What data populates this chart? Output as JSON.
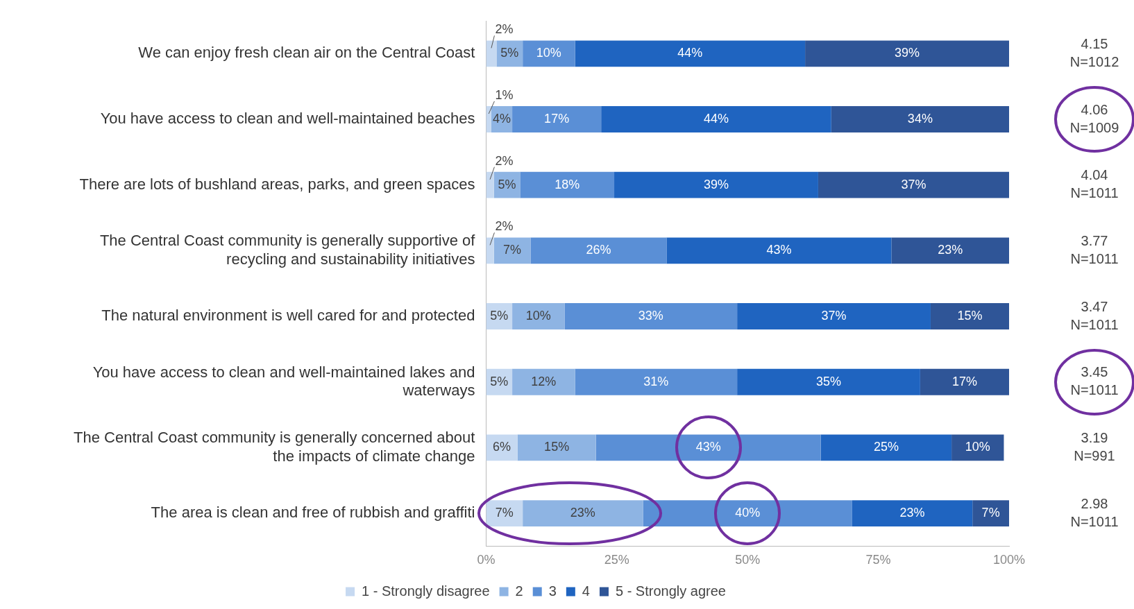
{
  "chart_data": {
    "type": "bar",
    "orientation": "horizontal",
    "stacked": true,
    "categories": [
      "We can enjoy fresh clean air on the Central Coast",
      "You have access to clean and well-maintained beaches",
      "There are lots of bushland areas, parks, and green spaces",
      "The Central Coast community is generally supportive of recycling and sustainability initiatives",
      "The natural environment is well cared for and protected",
      "You have access to clean and well-maintained lakes and waterways",
      "The Central Coast community is generally concerned about the impacts of climate change",
      "The area is clean and free of rubbish and graffiti"
    ],
    "series": [
      {
        "name": "1 - Strongly disagree",
        "color": "#c6d9f1",
        "values": [
          2,
          1,
          1.5,
          1.5,
          5,
          5,
          6,
          7
        ],
        "value_labels": [
          "2%",
          "1%",
          "2%",
          "2%",
          "5%",
          "5%",
          "6%",
          "7%"
        ]
      },
      {
        "name": "2",
        "color": "#8eb4e3",
        "values": [
          5,
          4,
          5,
          7,
          10,
          12,
          15,
          23
        ],
        "value_labels": [
          "5%",
          "4%",
          "5%",
          "7%",
          "10%",
          "12%",
          "15%",
          "23%"
        ]
      },
      {
        "name": "3",
        "color": "#5a8fd6",
        "values": [
          10,
          17,
          18,
          26,
          33,
          31,
          43,
          40
        ],
        "value_labels": [
          "10%",
          "17%",
          "18%",
          "26%",
          "33%",
          "31%",
          "43%",
          "40%"
        ]
      },
      {
        "name": "4",
        "color": "#1f64c0",
        "values": [
          44,
          44,
          39,
          43,
          37,
          35,
          25,
          23
        ],
        "value_labels": [
          "44%",
          "44%",
          "39%",
          "43%",
          "37%",
          "35%",
          "25%",
          "23%"
        ]
      },
      {
        "name": "5 - Strongly agree",
        "color": "#2f5597",
        "values": [
          39,
          34,
          36.5,
          22.5,
          15,
          17,
          10,
          7
        ],
        "value_labels": [
          "39%",
          "34%",
          "37%",
          "23%",
          "15%",
          "17%",
          "10%",
          "7%"
        ]
      }
    ],
    "xlim": [
      0,
      100
    ],
    "xticks": [
      {
        "value": 0,
        "label": "0%"
      },
      {
        "value": 25,
        "label": "25%"
      },
      {
        "value": 50,
        "label": "50%"
      },
      {
        "value": 75,
        "label": "75%"
      },
      {
        "value": 100,
        "label": "100%"
      }
    ],
    "grid": false,
    "legend": "bottom",
    "annotations": [
      "4.15 N=1012",
      "4.06 N=1009",
      "4.04 N=1011",
      "3.77 N=1011",
      "3.47 N=1011",
      "3.45 N=1011",
      "3.19 N=991",
      "2.98 N=1011"
    ]
  }
}
